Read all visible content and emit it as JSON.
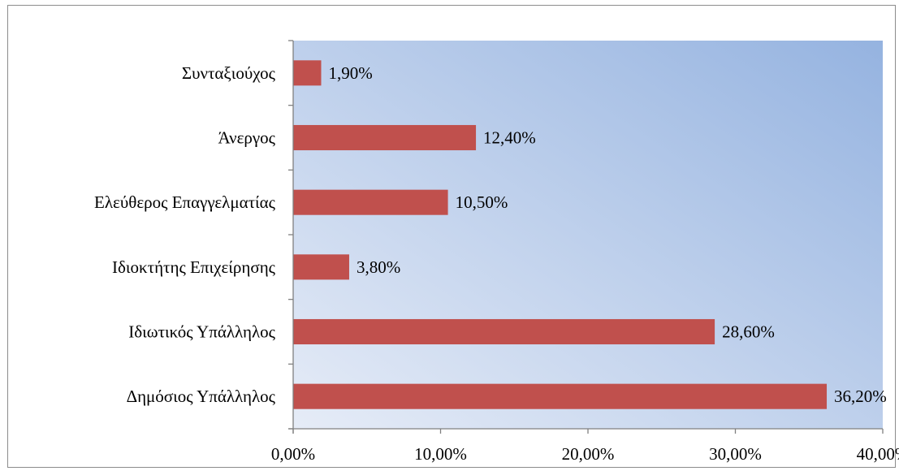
{
  "chart_data": {
    "type": "bar",
    "orientation": "horizontal",
    "title": "",
    "xlabel": "",
    "ylabel": "",
    "categories": [
      "Συνταξιούχος",
      "Άνεργος",
      "Ελεύθερος Επαγγελματίας",
      "Ιδιοκτήτης Επιχείρησης",
      "Ιδιωτικός Υπάλληλος",
      "Δημόσιος Υπάλληλος"
    ],
    "values": [
      1.9,
      12.4,
      10.5,
      3.8,
      28.6,
      36.2
    ],
    "value_labels": [
      "1,90%",
      "12,40%",
      "10,50%",
      "3,80%",
      "28,60%",
      "36,20%"
    ],
    "xlim": [
      0,
      40
    ],
    "x_ticks": [
      0,
      10,
      20,
      30,
      40
    ],
    "x_tick_labels": [
      "0,00%",
      "10,00%",
      "20,00%",
      "30,00%",
      "40,00%"
    ],
    "grid": false,
    "legend": "none",
    "bar_color": "#c0504d",
    "plot_background_top": "#95b3e0",
    "plot_background_bottom": "#e6ecf7"
  }
}
